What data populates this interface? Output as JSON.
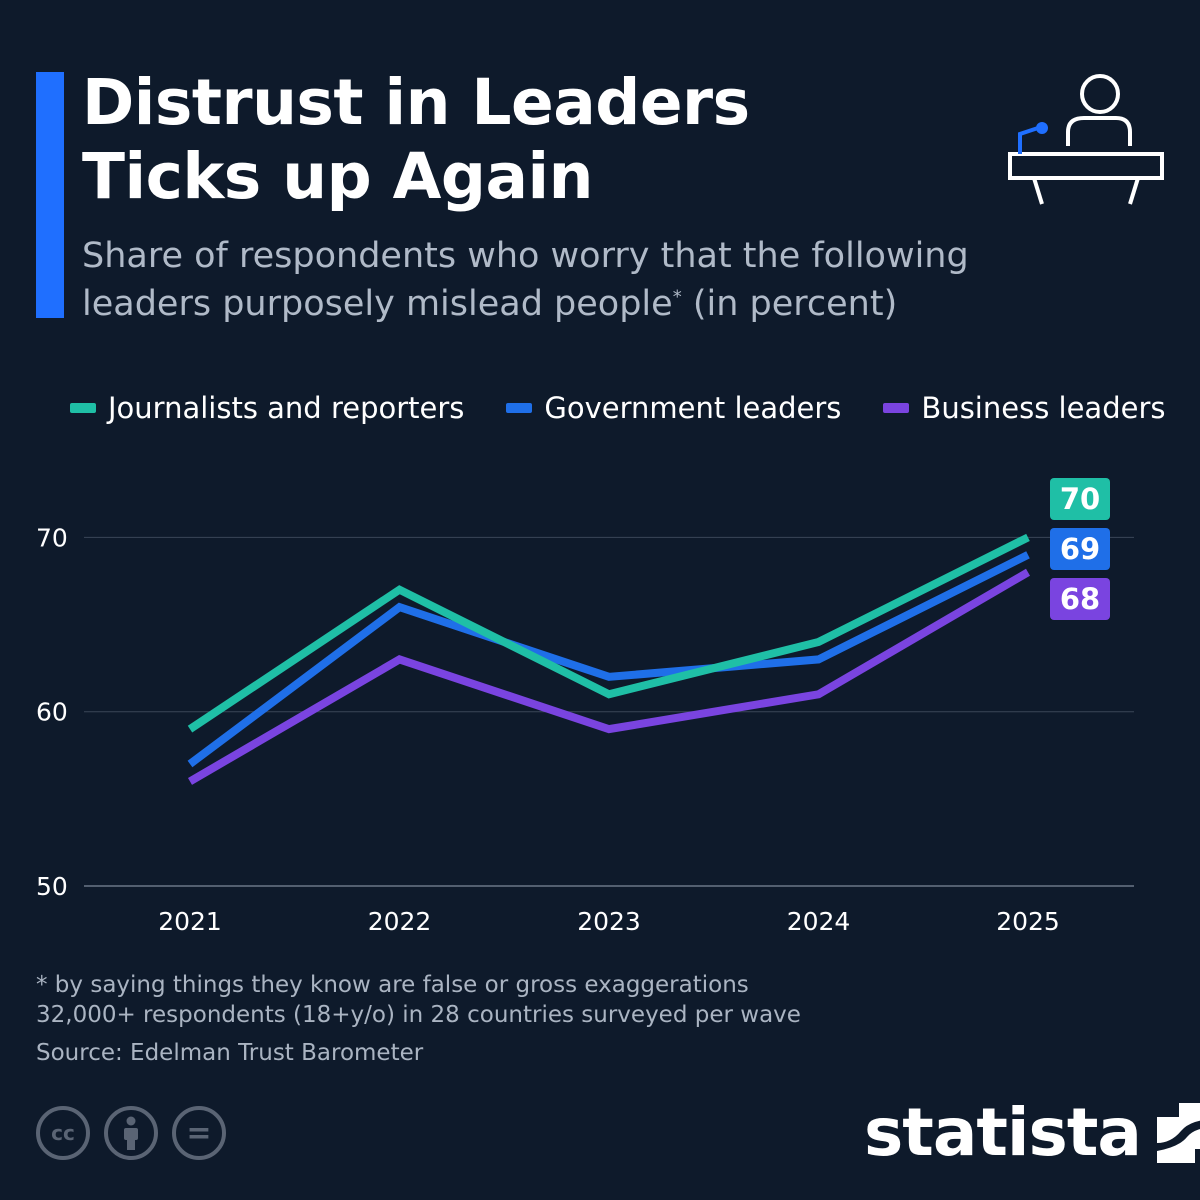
{
  "title_lines": [
    "Distrust in Leaders",
    "Ticks up Again"
  ],
  "subtitle": {
    "line1": "Share of respondents who worry that the following",
    "line2_main": "leaders purposely mislead people",
    "line2_sup": "*",
    "line2_end": " (in percent)"
  },
  "colors": {
    "background": "#0e1a2b",
    "accent": "#1f6fff",
    "journalists": "#1fbfa6",
    "government": "#1f6fe8",
    "business": "#7a44e0",
    "grid": "#3a4658"
  },
  "chart_data": {
    "type": "line",
    "x": [
      "2021",
      "2022",
      "2023",
      "2024",
      "2025"
    ],
    "series": [
      {
        "name": "Journalists and reporters",
        "values": [
          59,
          67,
          61,
          64,
          70
        ]
      },
      {
        "name": "Government leaders",
        "values": [
          57,
          66,
          62,
          63,
          69
        ]
      },
      {
        "name": "Business leaders",
        "values": [
          56,
          63,
          59,
          61,
          68
        ]
      }
    ],
    "end_labels": [
      "70",
      "69",
      "68"
    ],
    "ylim": [
      50,
      72
    ],
    "yticks": [
      "50",
      "60",
      "70"
    ],
    "grid": true,
    "legend_placement": "top"
  },
  "footnote": {
    "line1": "* by saying things they know are false or gross exaggerations",
    "line2": "32,000+ respondents (18+y/o) in 28 countries surveyed per wave",
    "source": "Source: Edelman Trust Barometer"
  },
  "license_icons": [
    "cc-icon",
    "attribution-icon",
    "no-derivatives-icon"
  ],
  "license_labels": {
    "cc": "cc",
    "nd": "="
  },
  "logo_text": "statista"
}
